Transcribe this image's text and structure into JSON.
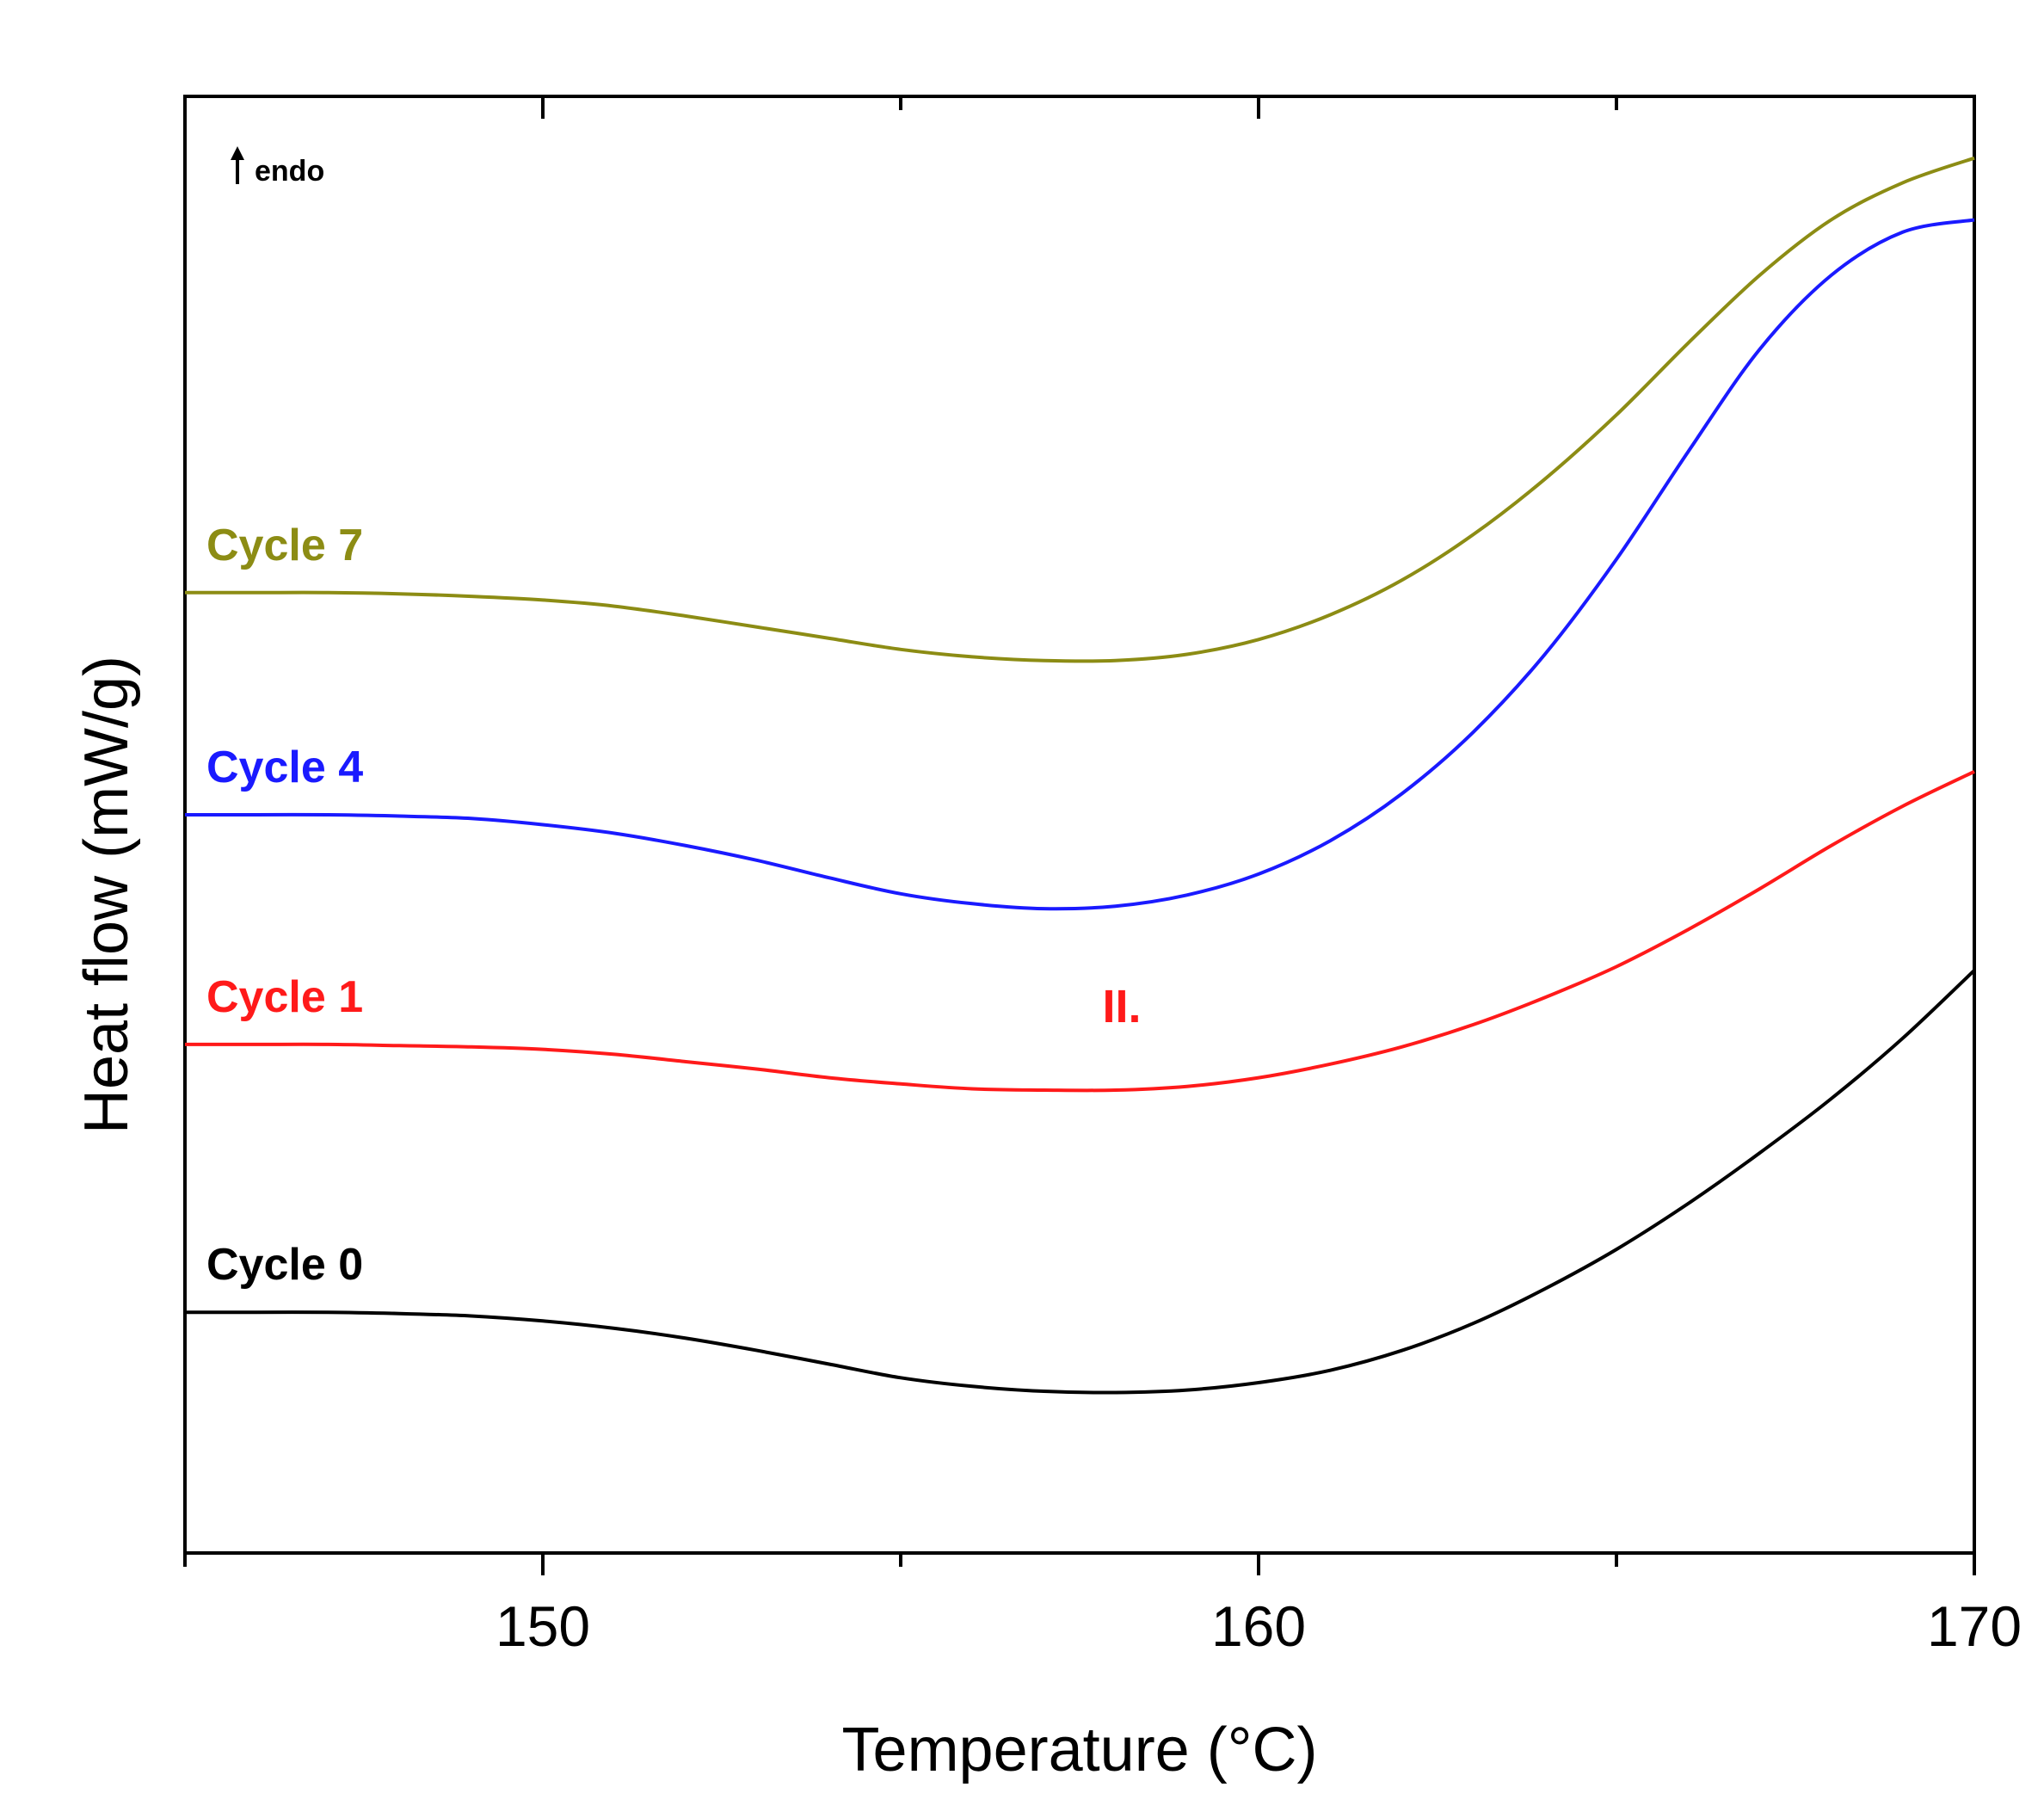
{
  "chart_data": {
    "type": "line",
    "title": "",
    "xlabel": "Temperature (°C)",
    "ylabel": "Heat flow (mW/g)",
    "xlim": [
      145,
      170
    ],
    "ylim": [
      -2.3,
      9.5
    ],
    "x_ticks": [
      150,
      160,
      170
    ],
    "y_ticks": [],
    "grid": false,
    "legend": "inline labels at left",
    "annotations": [
      {
        "id": "endo",
        "text": "endo",
        "arrow": "up",
        "position": "top-left"
      },
      {
        "id": "peak2",
        "text": "II.",
        "color": "#ff1a1a",
        "position": "above Cycle 1 minimum"
      }
    ],
    "series": [
      {
        "name": "Cycle 7",
        "label": "Cycle 7",
        "color": "#8c8c14",
        "x": [
          145,
          146,
          147,
          148,
          149,
          150,
          151,
          152,
          153,
          154,
          155,
          156,
          157,
          158,
          159,
          160,
          161,
          162,
          163,
          164,
          165,
          166,
          167,
          168,
          169,
          170
        ],
        "y": [
          5.48,
          5.48,
          5.48,
          5.47,
          5.45,
          5.42,
          5.37,
          5.29,
          5.2,
          5.11,
          5.02,
          4.96,
          4.93,
          4.93,
          4.98,
          5.1,
          5.3,
          5.58,
          5.95,
          6.4,
          6.92,
          7.5,
          8.05,
          8.5,
          8.8,
          9.0
        ]
      },
      {
        "name": "Cycle 4",
        "label": "Cycle 4",
        "color": "#1a1aff",
        "x": [
          145,
          146,
          147,
          148,
          149,
          150,
          151,
          152,
          153,
          154,
          155,
          156,
          157,
          158,
          159,
          160,
          161,
          162,
          163,
          164,
          165,
          166,
          167,
          168,
          169,
          170
        ],
        "y": [
          3.68,
          3.68,
          3.68,
          3.67,
          3.65,
          3.6,
          3.53,
          3.43,
          3.31,
          3.17,
          3.04,
          2.96,
          2.92,
          2.94,
          3.03,
          3.2,
          3.47,
          3.85,
          4.35,
          4.98,
          5.75,
          6.62,
          7.45,
          8.05,
          8.4,
          8.5
        ]
      },
      {
        "name": "Cycle 1",
        "label": "Cycle 1",
        "color": "#ff1a1a",
        "x": [
          145,
          146,
          147,
          148,
          149,
          150,
          151,
          152,
          153,
          154,
          155,
          156,
          157,
          158,
          159,
          160,
          161,
          162,
          163,
          164,
          165,
          166,
          167,
          168,
          169,
          170
        ],
        "y": [
          1.82,
          1.82,
          1.82,
          1.81,
          1.8,
          1.78,
          1.74,
          1.68,
          1.62,
          1.55,
          1.5,
          1.46,
          1.45,
          1.45,
          1.48,
          1.55,
          1.66,
          1.8,
          1.98,
          2.2,
          2.45,
          2.75,
          3.08,
          3.43,
          3.75,
          4.03
        ]
      },
      {
        "name": "Cycle 0",
        "label": "Cycle 0",
        "color": "#000000",
        "x": [
          145,
          146,
          147,
          148,
          149,
          150,
          151,
          152,
          153,
          154,
          155,
          156,
          157,
          158,
          159,
          160,
          161,
          162,
          163,
          164,
          165,
          166,
          167,
          168,
          169,
          170
        ],
        "y": [
          -0.35,
          -0.35,
          -0.35,
          -0.36,
          -0.38,
          -0.42,
          -0.48,
          -0.56,
          -0.66,
          -0.77,
          -0.88,
          -0.95,
          -0.99,
          -1.0,
          -0.98,
          -0.92,
          -0.82,
          -0.66,
          -0.44,
          -0.16,
          0.16,
          0.53,
          0.94,
          1.38,
          1.87,
          2.42
        ]
      }
    ]
  }
}
